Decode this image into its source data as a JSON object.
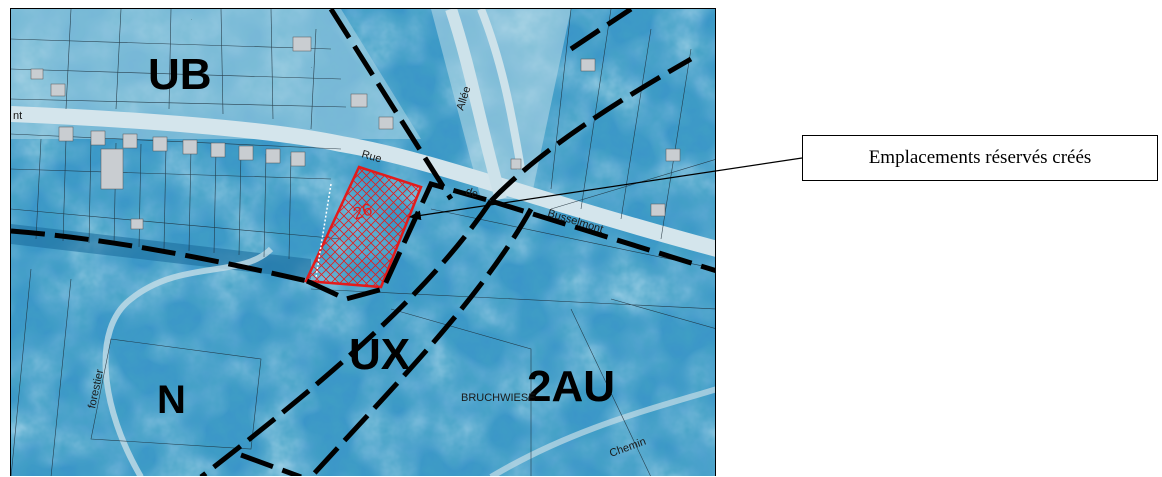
{
  "map": {
    "zones": [
      {
        "id": "ub",
        "label": "UB"
      },
      {
        "id": "ux",
        "label": "UX"
      },
      {
        "id": "n",
        "label": "N"
      },
      {
        "id": "2au",
        "label": "2AU"
      }
    ],
    "reserved_area_number": "26",
    "street_labels": {
      "rue": "Rue",
      "de": "de",
      "street_name": "Busselmont",
      "allee": "Allée",
      "lieu_dit": "BRUCHWIESE",
      "forestier": "forestier",
      "chemin": "Chemin",
      "edge_left": "nt"
    },
    "colors": {
      "reserved_outline": "#e31b1b",
      "zone_boundary": "#000000",
      "aerial_vegetation": "#2a88c4",
      "aerial_light": "#9fd0e6"
    }
  },
  "callout": {
    "label": "Emplacements réservés créés"
  }
}
